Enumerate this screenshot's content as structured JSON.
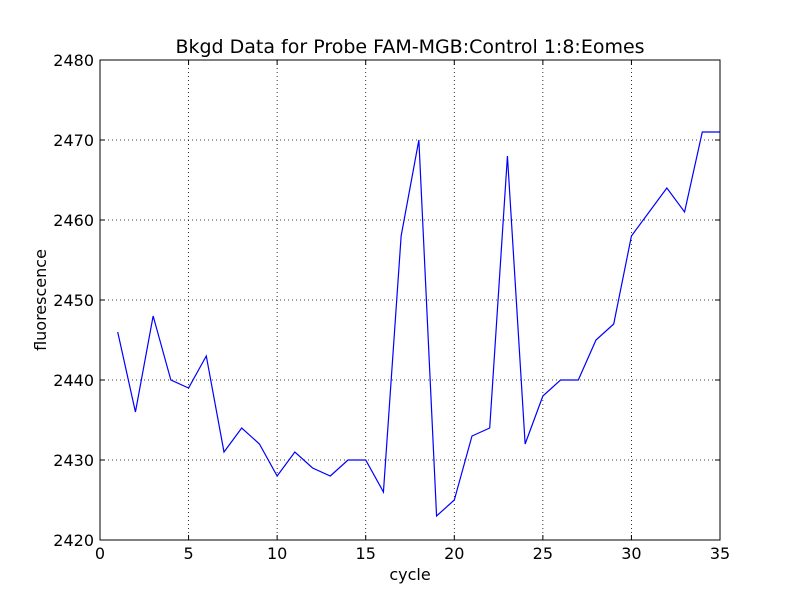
{
  "chart_data": {
    "type": "line",
    "title": "Bkgd Data for Probe FAM-MGB:Control 1:8:Eomes",
    "xlabel": "cycle",
    "ylabel": "fluorescence",
    "xlim": [
      0,
      35
    ],
    "ylim": [
      2420,
      2480
    ],
    "xticks": [
      0,
      5,
      10,
      15,
      20,
      25,
      30,
      35
    ],
    "yticks": [
      2420,
      2430,
      2440,
      2450,
      2460,
      2470,
      2480
    ],
    "grid": true,
    "line_color": "#0000ff",
    "series": [
      {
        "x": [
          1,
          2,
          3,
          4,
          5,
          6,
          7,
          8,
          9,
          10,
          11,
          12,
          13,
          14,
          15,
          16,
          17,
          18,
          19,
          20,
          21,
          22,
          23,
          24,
          25,
          26,
          27,
          28,
          29,
          30,
          31,
          32,
          33,
          34,
          35
        ],
        "values": [
          2446,
          2436,
          2448,
          2440,
          2439,
          2443,
          2431,
          2434,
          2432,
          2428,
          2431,
          2429,
          2428,
          2430,
          2430,
          2426,
          2458,
          2470,
          2423,
          2425,
          2433,
          2434,
          2468,
          2432,
          2438,
          2440,
          2440,
          2445,
          2447,
          2458,
          2461,
          2464,
          2461,
          2471,
          2471
        ]
      }
    ]
  }
}
